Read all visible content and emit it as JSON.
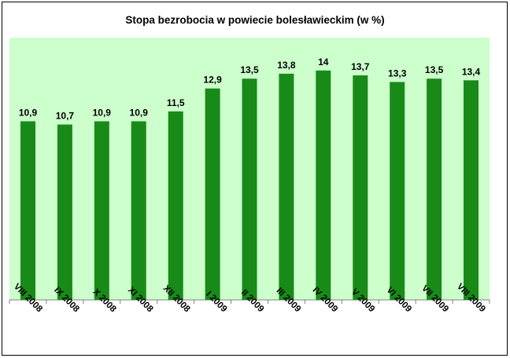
{
  "chart_data": {
    "type": "bar",
    "title": "Stopa bezrobocia w powiecie bolesławieckim (w %)",
    "xlabel": "",
    "ylabel": "",
    "categories": [
      "VIII 2008",
      "IX 2008",
      "X 2008",
      "XI 2008",
      "XII 2008",
      "I 2009",
      "II 2009",
      "III 2009",
      "IV 2009",
      "V 2009",
      "VI 2009",
      "VII 2009",
      "VIII 2009"
    ],
    "values": [
      10.9,
      10.7,
      10.9,
      10.9,
      11.5,
      12.9,
      13.5,
      13.8,
      14,
      13.7,
      13.3,
      13.5,
      13.4
    ],
    "value_labels": [
      "10,9",
      "10,7",
      "10,9",
      "10,9",
      "11,5",
      "12,9",
      "13,5",
      "13,8",
      "14",
      "13,7",
      "13,3",
      "13,5",
      "13,4"
    ],
    "ylim": [
      0,
      16
    ],
    "grid": false,
    "legend": "none",
    "colors": {
      "bar": "#188a18",
      "plot_background": "#ccffcc"
    }
  }
}
